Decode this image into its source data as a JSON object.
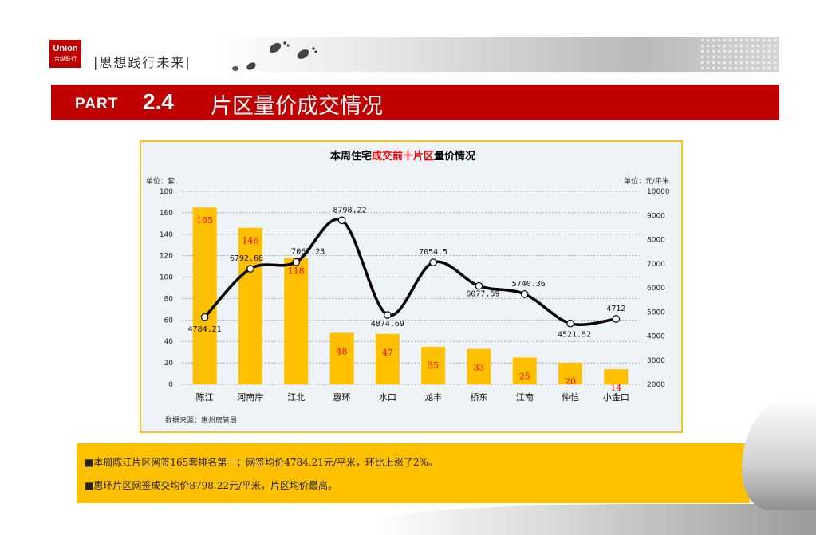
{
  "header": {
    "logo_line1": "Union",
    "logo_line2": "合纵联行",
    "slogan": "|思想践行未来|"
  },
  "banner": {
    "part": "PART",
    "number": "2.4",
    "title": "片区量价成交情况"
  },
  "chart_data": {
    "type": "bar+line",
    "title_parts": [
      "本周住宅",
      "成交前十片区",
      "量价情况"
    ],
    "title_colors": [
      "#000000",
      "#ff0000",
      "#000000"
    ],
    "left_unit": "单位：套",
    "right_unit": "单位：元/平米",
    "categories": [
      "陈江",
      "河南岸",
      "江北",
      "惠环",
      "水口",
      "龙丰",
      "桥东",
      "江南",
      "仲恺",
      "小金口"
    ],
    "bars": [
      165,
      146,
      118,
      48,
      47,
      35,
      33,
      25,
      20,
      14
    ],
    "line": [
      4784.21,
      6792.68,
      7067.23,
      8798.22,
      4874.69,
      7054.5,
      6077.59,
      5740.36,
      4521.52,
      4712
    ],
    "line_labels": [
      "4784.21",
      "6792.68",
      "7067.23",
      "8798.22",
      "4874.69",
      "7054.5",
      "6077.59",
      "5740.36",
      "4521.52",
      "4712"
    ],
    "y_left_ticks": [
      "0",
      "20",
      "40",
      "60",
      "80",
      "100",
      "120",
      "140",
      "160",
      "180"
    ],
    "y_right_ticks": [
      "2000",
      "3000",
      "4000",
      "5000",
      "6000",
      "7000",
      "8000",
      "9000",
      "10000"
    ],
    "ylim_left": [
      0,
      180
    ],
    "ylim_right": [
      2000,
      10000
    ],
    "bar_color": "#ffc000",
    "bar_label_color": "#ff0000",
    "line_color": "#000000",
    "grid": "dashed-horizontal",
    "source": "数据来源：惠州房管局"
  },
  "summary": {
    "line1": "■本周陈江片区网签165套排名第一；网签均价4784.21元/平米，环比上涨了2%。",
    "line2": "■惠环片区网签成交均价8798.22元/平米，片区均价最高。"
  }
}
